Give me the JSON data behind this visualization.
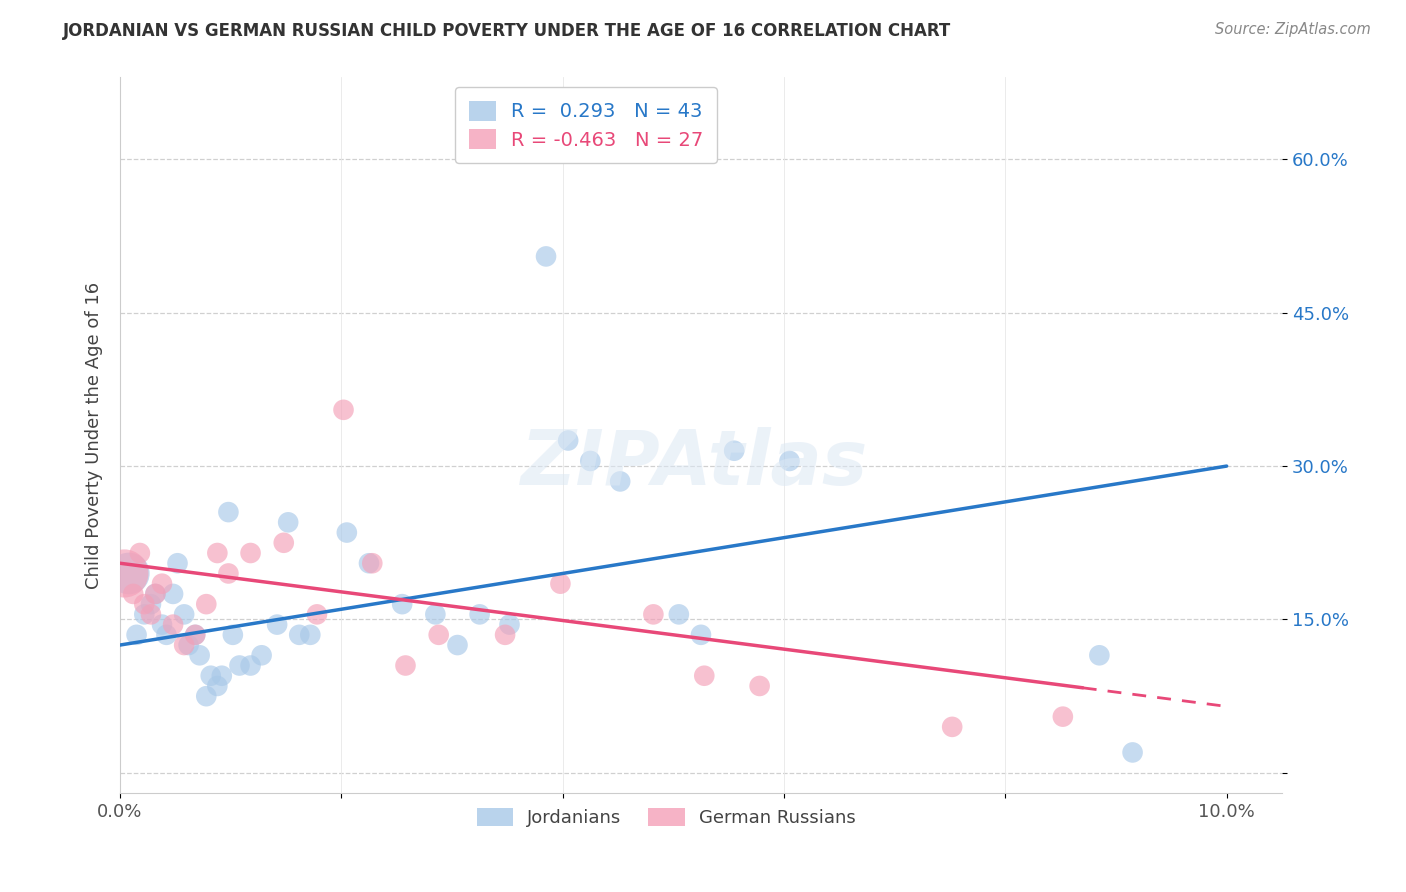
{
  "title": "JORDANIAN VS GERMAN RUSSIAN CHILD POVERTY UNDER THE AGE OF 16 CORRELATION CHART",
  "source": "Source: ZipAtlas.com",
  "ylabel": "Child Poverty Under the Age of 16",
  "xlim": [
    0.0,
    10.5
  ],
  "ylim": [
    -2.0,
    68.0
  ],
  "r_jordanian": 0.293,
  "n_jordanian": 43,
  "r_german_russian": -0.463,
  "n_german_russian": 27,
  "blue_color": "#a8c8e8",
  "pink_color": "#f4a0b8",
  "trend_blue": "#2878c8",
  "trend_pink": "#e84878",
  "legend_label_1": "Jordanians",
  "legend_label_2": "German Russians",
  "blue_trend_x0": 0.0,
  "blue_trend_y0": 12.5,
  "blue_trend_x1": 10.0,
  "blue_trend_y1": 30.0,
  "pink_trend_x0": 0.0,
  "pink_trend_y0": 20.5,
  "pink_trend_x1": 10.0,
  "pink_trend_y1": 6.5,
  "pink_solid_end": 8.7,
  "jordanians_x": [
    0.08,
    0.15,
    0.22,
    0.28,
    0.32,
    0.38,
    0.42,
    0.48,
    0.52,
    0.58,
    0.62,
    0.68,
    0.72,
    0.78,
    0.82,
    0.88,
    0.92,
    0.98,
    1.02,
    1.08,
    1.18,
    1.28,
    1.42,
    1.52,
    1.62,
    1.72,
    2.05,
    2.25,
    2.55,
    2.85,
    3.05,
    3.25,
    3.52,
    3.85,
    4.05,
    4.25,
    4.52,
    5.05,
    5.25,
    5.55,
    6.05,
    8.85,
    9.15
  ],
  "jordanians_y": [
    19.5,
    13.5,
    15.5,
    16.5,
    17.5,
    14.5,
    13.5,
    17.5,
    20.5,
    15.5,
    12.5,
    13.5,
    11.5,
    7.5,
    9.5,
    8.5,
    9.5,
    25.5,
    13.5,
    10.5,
    10.5,
    11.5,
    14.5,
    24.5,
    13.5,
    13.5,
    23.5,
    20.5,
    16.5,
    15.5,
    12.5,
    15.5,
    14.5,
    50.5,
    32.5,
    30.5,
    28.5,
    15.5,
    13.5,
    31.5,
    30.5,
    11.5,
    2.0
  ],
  "jordanians_size_large": 1,
  "german_russians_x": [
    0.04,
    0.12,
    0.18,
    0.22,
    0.28,
    0.32,
    0.38,
    0.48,
    0.58,
    0.68,
    0.78,
    0.88,
    0.98,
    1.18,
    1.48,
    1.78,
    2.02,
    2.28,
    2.58,
    2.88,
    3.48,
    3.98,
    4.82,
    5.28,
    5.78,
    7.52,
    8.52
  ],
  "german_russians_y": [
    19.5,
    17.5,
    21.5,
    16.5,
    15.5,
    17.5,
    18.5,
    14.5,
    12.5,
    13.5,
    16.5,
    21.5,
    19.5,
    21.5,
    22.5,
    15.5,
    35.5,
    20.5,
    10.5,
    13.5,
    13.5,
    18.5,
    15.5,
    9.5,
    8.5,
    4.5,
    5.5
  ],
  "background_color": "#ffffff",
  "grid_color": "#d0d0d0"
}
